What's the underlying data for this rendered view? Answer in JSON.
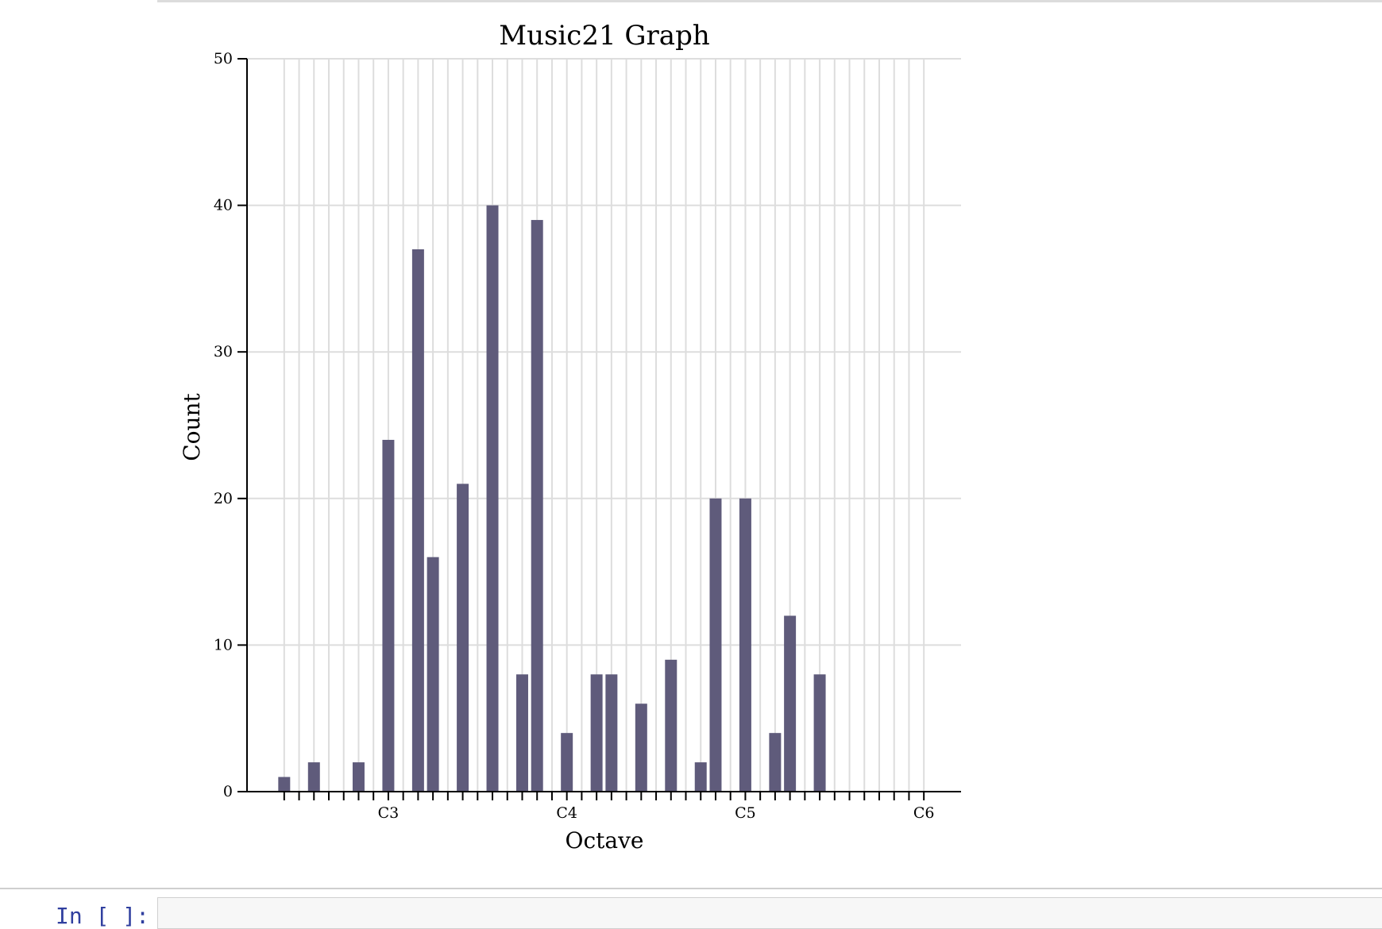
{
  "chart_data": {
    "type": "bar",
    "title": "Music21 Graph",
    "xlabel": "Octave",
    "ylabel": "Count",
    "ylim": [
      0,
      50
    ],
    "yticks": [
      0,
      10,
      20,
      30,
      40,
      50
    ],
    "xlim": [
      38.5,
      86.5
    ],
    "xtick_labels": [
      {
        "label": "C3",
        "x": 48
      },
      {
        "label": "C4",
        "x": 60
      },
      {
        "label": "C5",
        "x": 72
      },
      {
        "label": "C6",
        "x": 84
      }
    ],
    "minor_tick_start": 41,
    "minor_tick_end": 84,
    "grid": true,
    "bar_color": "#5f5b7b",
    "x": [
      41,
      43,
      46,
      48,
      50,
      51,
      53,
      55,
      57,
      58,
      60,
      62,
      63,
      65,
      67,
      69,
      70,
      72,
      74,
      75,
      77,
      84
    ],
    "values": [
      1,
      2,
      2,
      24,
      37,
      16,
      21,
      40,
      8,
      39,
      4,
      8,
      8,
      6,
      9,
      2,
      20,
      20,
      4,
      12,
      8,
      0
    ]
  },
  "notebook": {
    "prompt": "In [ ]:"
  }
}
